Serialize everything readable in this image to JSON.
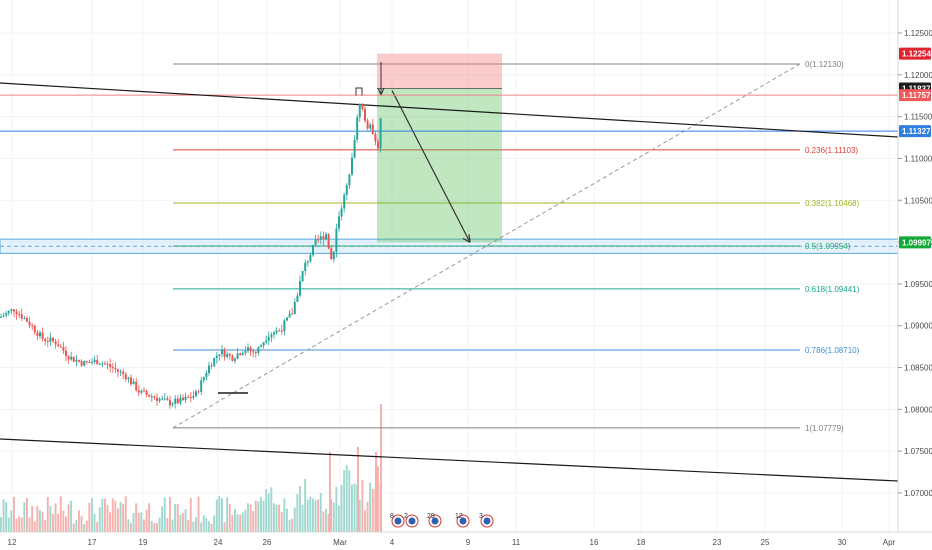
{
  "chart_data": {
    "type": "candlestick",
    "symbol_pair_hint": "",
    "y_axis": {
      "range": [
        1.0655,
        1.1295
      ],
      "ticks": [
        "1.12500",
        "1.12000",
        "1.11500",
        "1.11000",
        "1.10500",
        "1.10000",
        "1.09500",
        "1.09000",
        "1.08500",
        "1.08000",
        "1.07500",
        "1.07000"
      ]
    },
    "x_axis": {
      "ticks": [
        "12",
        "17",
        "19",
        "24",
        "26",
        "Mar",
        "4",
        "9",
        "11",
        "16",
        "18",
        "23",
        "25",
        "30",
        "Apr"
      ]
    },
    "price_tags": [
      {
        "label": "1.12254",
        "value": 1.12254,
        "color": "#e0242f"
      },
      {
        "label": "1.11837",
        "value": 1.11837,
        "color": "#1e1e1e"
      },
      {
        "label": "1.11757",
        "value": 1.11757,
        "color": "#f05a5a"
      },
      {
        "label": "1.11327",
        "value": 1.11327,
        "color": "#2f7fe0"
      },
      {
        "label": "1.09997",
        "value": 1.09997,
        "color": "#13a838"
      }
    ],
    "fibonacci": [
      {
        "label": "0(1.12130)",
        "value": 1.1213,
        "color": "#808080"
      },
      {
        "label": "0.236(1.11103)",
        "value": 1.11103,
        "color": "#e0403a"
      },
      {
        "label": "0.382(1.10468)",
        "value": 1.10468,
        "color": "#9ab820"
      },
      {
        "label": "0.5(1.09954)",
        "value": 1.09954,
        "color": "#2ea86a"
      },
      {
        "label": "0.618(1.09441)",
        "value": 1.09441,
        "color": "#1aa88a"
      },
      {
        "label": "0.786(1.08710)",
        "value": 1.0871,
        "color": "#3f8fd6"
      },
      {
        "label": "1(1.07779)",
        "value": 1.07779,
        "color": "#808080"
      }
    ],
    "position": {
      "entry": 1.11837,
      "stop": 1.12254,
      "target": 1.09997
    },
    "horizontal_lines": [
      {
        "value": 1.11757,
        "color": "#f08080"
      },
      {
        "value": 1.11327,
        "color": "#2f7fe0"
      }
    ],
    "support_zone": {
      "from": 1.09865,
      "to": 1.10035
    },
    "events": [
      "8",
      "2",
      "29",
      "12",
      "3"
    ]
  }
}
